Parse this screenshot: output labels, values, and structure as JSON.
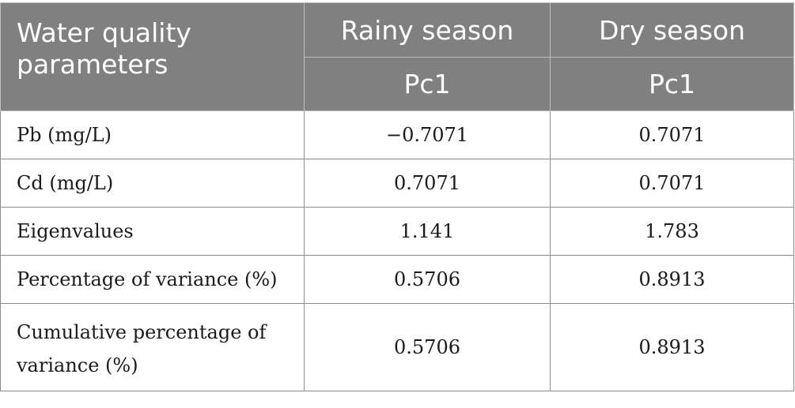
{
  "table": {
    "header": {
      "param_label": "Water quality parameters",
      "rainy_label": "Rainy season",
      "dry_label": "Dry season",
      "rainy_sub": "Pc1",
      "dry_sub": "Pc1"
    },
    "rows": [
      {
        "label": "Pb (mg/L)",
        "rainy": "−0.7071",
        "dry": "0.7071"
      },
      {
        "label": "Cd (mg/L)",
        "rainy": "0.7071",
        "dry": "0.7071"
      },
      {
        "label": "Eigenvalues",
        "rainy": "1.141",
        "dry": "1.783"
      },
      {
        "label": "Percentage of variance (%)",
        "rainy": "0.5706",
        "dry": "0.8913"
      },
      {
        "label": "Cumulative percentage of variance (%)",
        "rainy": "0.5706",
        "dry": "0.8913"
      }
    ]
  }
}
